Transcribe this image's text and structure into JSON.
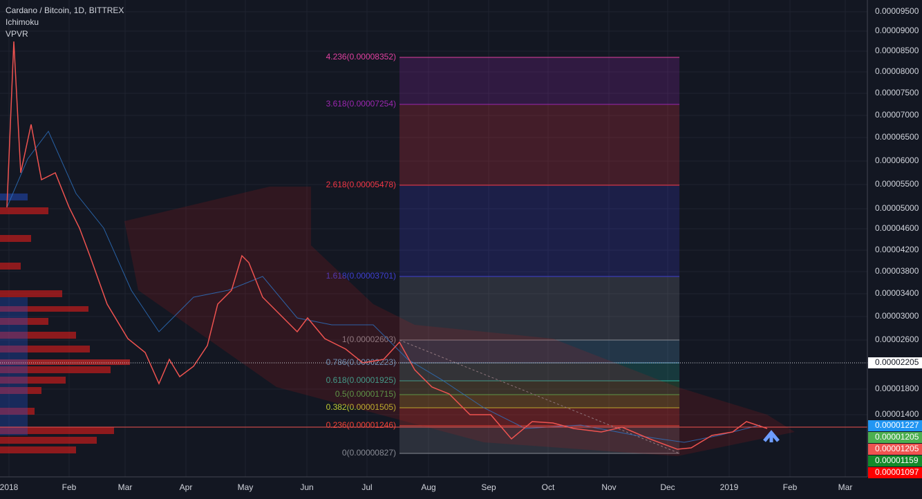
{
  "header": {
    "symbol": "Cardano / Bitcoin, 1D, BITTREX",
    "indicators": [
      "Ichimoku",
      "VPVR"
    ]
  },
  "price_axis": {
    "labels": [
      "0.00009500",
      "0.00009000",
      "0.00008500",
      "0.00008000",
      "0.00007500",
      "0.00007000",
      "0.00006500",
      "0.00006000",
      "0.00005500",
      "0.00005000",
      "0.00004600",
      "0.00004200",
      "0.00003800",
      "0.00003400",
      "0.00003000",
      "0.00002600",
      "0.00001800",
      "0.00001400"
    ]
  },
  "time_axis": {
    "labels": [
      "2018",
      "Feb",
      "Mar",
      "Apr",
      "May",
      "Jun",
      "Jul",
      "Aug",
      "Sep",
      "Oct",
      "Nov",
      "Dec",
      "2019",
      "Feb",
      "Mar"
    ]
  },
  "fib_levels": [
    {
      "label": "4.236(0.00008352)",
      "color": "#e040a0"
    },
    {
      "label": "3.618(0.00007254)",
      "color": "#9c27b0"
    },
    {
      "label": "2.618(0.00005478)",
      "color": "#f23645"
    },
    {
      "label": "1.618(0.00003701)",
      "color": "#3f3fd0"
    },
    {
      "label": "1(0.00002603)",
      "color": "#888b94"
    },
    {
      "label": "0.786(0.00002223)",
      "color": "#5fa8d3"
    },
    {
      "label": "0.618(0.00001925)",
      "color": "#2bb5a0"
    },
    {
      "label": "0.5(0.00001715)",
      "color": "#4caf50"
    },
    {
      "label": "0.382(0.00001505)",
      "color": "#c0ca33"
    },
    {
      "label": "0.236(0.00001246)",
      "color": "#f44336"
    },
    {
      "label": "0(0.00000827)",
      "color": "#888b94"
    }
  ],
  "price_tags": [
    {
      "label": "0.00002205",
      "color": "#ffffff",
      "text_color": "#131722"
    },
    {
      "label": "0.00001227",
      "color": "#2196f3",
      "text_color": "#ffffff"
    },
    {
      "label": "0.00001205",
      "color": "#4caf50",
      "text_color": "#ffffff"
    },
    {
      "label": "0.00001205",
      "color": "#ef5350",
      "text_color": "#ffffff"
    },
    {
      "label": "0.00001159",
      "color": "#138a2a",
      "text_color": "#ffffff"
    },
    {
      "label": "0.00001097",
      "color": "#ff0000",
      "text_color": "#ffffff"
    }
  ]
}
